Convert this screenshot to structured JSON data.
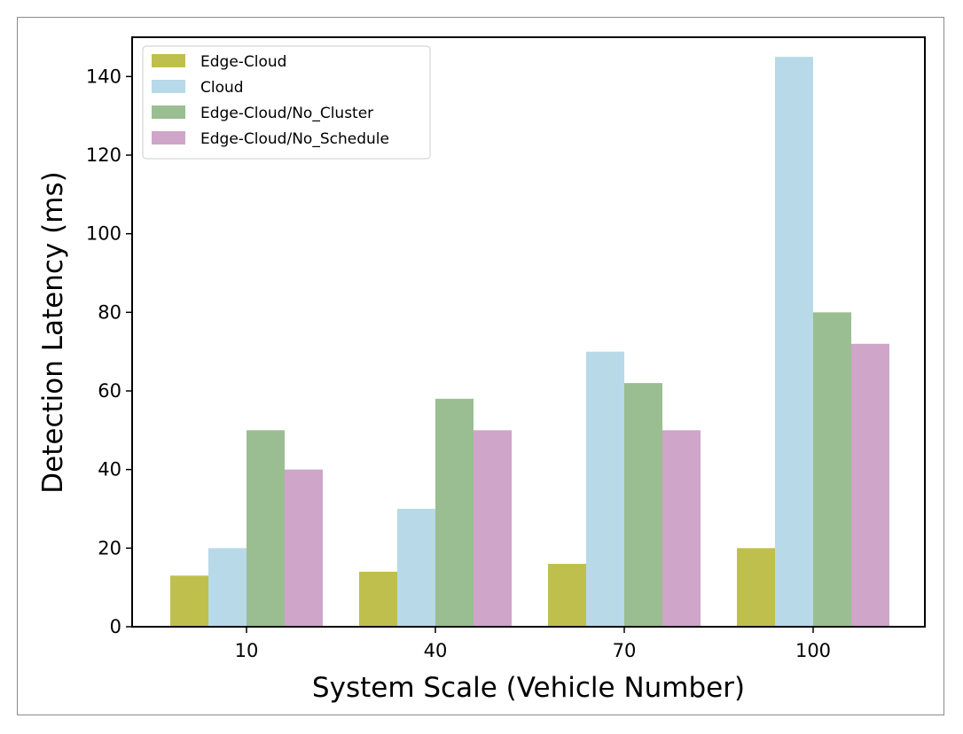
{
  "chart_data": {
    "type": "bar",
    "categories": [
      "10",
      "40",
      "70",
      "100"
    ],
    "series": [
      {
        "name": "Edge-Cloud",
        "color": "#bfbf4d",
        "values": [
          13,
          14,
          16,
          20
        ]
      },
      {
        "name": "Cloud",
        "color": "#b7d9e8",
        "values": [
          20,
          30,
          70,
          145
        ]
      },
      {
        "name": "Edge-Cloud/No_Cluster",
        "color": "#9abe91",
        "values": [
          50,
          58,
          62,
          80
        ]
      },
      {
        "name": "Edge-Cloud/No_Schedule",
        "color": "#cfa5c9",
        "values": [
          40,
          50,
          50,
          72
        ]
      }
    ],
    "xlabel": "System Scale (Vehicle Number)",
    "ylabel": "Detection Latency (ms)",
    "ylim": [
      0,
      150
    ],
    "yticks": [
      0,
      20,
      40,
      60,
      80,
      100,
      120,
      140
    ],
    "grid": false,
    "legend_position": "top-left"
  }
}
